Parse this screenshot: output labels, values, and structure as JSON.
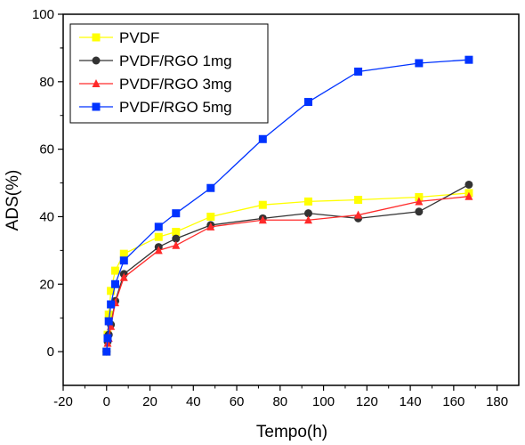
{
  "chart_data": {
    "type": "line",
    "xlabel": "Tempo(h)",
    "ylabel": "ADS(%)",
    "xlim": [
      -20,
      190
    ],
    "ylim": [
      -10,
      100
    ],
    "xticks": [
      -20,
      0,
      20,
      40,
      60,
      80,
      100,
      120,
      140,
      160,
      180
    ],
    "yticks": [
      0,
      20,
      40,
      60,
      80,
      100
    ],
    "xtick_labels": [
      "-20",
      "0",
      "20",
      "40",
      "60",
      "80",
      "100",
      "120",
      "140",
      "160",
      "180"
    ],
    "ytick_labels": [
      "0",
      "20",
      "40",
      "60",
      "80",
      "100"
    ],
    "grid": false,
    "legend_position": "top-left",
    "series": [
      {
        "name": "PVDF",
        "color": "#ffff00",
        "marker": "square",
        "x": [
          0,
          0.5,
          1,
          2,
          4,
          8,
          24,
          32,
          48,
          72,
          93,
          116,
          144,
          167
        ],
        "y": [
          0,
          5,
          11,
          18,
          24,
          29,
          34,
          35.5,
          40,
          43.5,
          44.5,
          45,
          45.8,
          47
        ]
      },
      {
        "name": "PVDF/RGO 1mg",
        "color": "#333333",
        "marker": "circle",
        "x": [
          0,
          0.5,
          1,
          2,
          4,
          8,
          24,
          32,
          48,
          72,
          93,
          116,
          144,
          167
        ],
        "y": [
          0,
          3,
          5,
          8,
          15,
          23,
          31,
          33.5,
          37.5,
          39.5,
          41,
          39.5,
          41.5,
          49.5
        ]
      },
      {
        "name": "PVDF/RGO 3mg",
        "color": "#ff2a2a",
        "marker": "triangle",
        "x": [
          0,
          0.5,
          1,
          2,
          4,
          8,
          24,
          32,
          48,
          72,
          93,
          116,
          144,
          167
        ],
        "y": [
          0,
          2.5,
          4,
          7.5,
          14.5,
          22,
          30,
          31.5,
          37,
          39,
          39,
          40.5,
          44.5,
          46
        ]
      },
      {
        "name": "PVDF/RGO 5mg",
        "color": "#0033ff",
        "marker": "square",
        "x": [
          0,
          0.5,
          1,
          2,
          4,
          8,
          24,
          32,
          48,
          72,
          93,
          116,
          144,
          167
        ],
        "y": [
          0,
          4,
          9,
          14,
          20,
          27,
          37,
          41,
          48.5,
          63,
          74,
          83,
          85.5,
          86.5
        ]
      }
    ]
  }
}
